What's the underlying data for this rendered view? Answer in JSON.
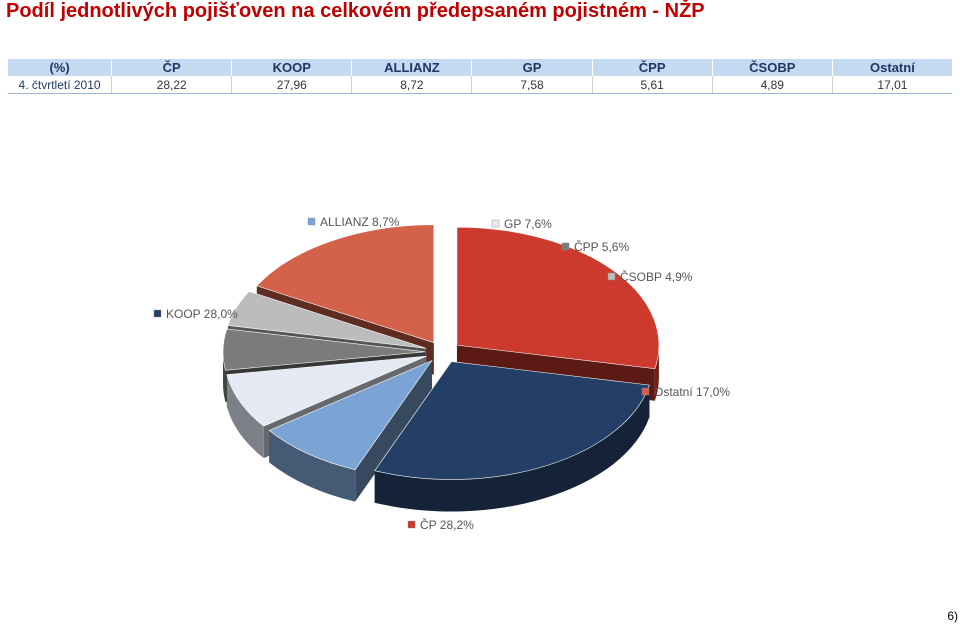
{
  "title": "Podíl jednotlivých pojišťoven na celkovém předepsaném pojistném - NŽP",
  "table": {
    "headers": [
      "(%)",
      "ČP",
      "KOOP",
      "ALLIANZ",
      "GP",
      "ČPP",
      "ČSOBP",
      "Ostatní"
    ],
    "row_label": "4. čtvrtletí 2010",
    "values": [
      "28,22",
      "27,96",
      "8,72",
      "7,58",
      "5,61",
      "4,89",
      "17,01"
    ]
  },
  "chart_data": {
    "type": "pie",
    "labels": [
      "ČP",
      "KOOP",
      "ALLIANZ",
      "GP",
      "ČPP",
      "ČSOBP",
      "Ostatní"
    ],
    "values": [
      28.2,
      28.0,
      8.7,
      7.6,
      5.6,
      4.9,
      17.0
    ],
    "data_labels": [
      "ČP 28,2%",
      "KOOP 28,0%",
      "ALLIANZ 8,7%",
      "GP 7,6%",
      "ČPP 5,6%",
      "ČSOBP 4,9%",
      "Ostatní 17,0%"
    ],
    "colors": [
      "#cc3a2e",
      "#243f66",
      "#7ba3d4",
      "#e4e9f3",
      "#7b7b7b",
      "#bcbcbc",
      "#d4614a"
    ],
    "exploded": true,
    "three_d": true
  },
  "slide_number": "6)"
}
